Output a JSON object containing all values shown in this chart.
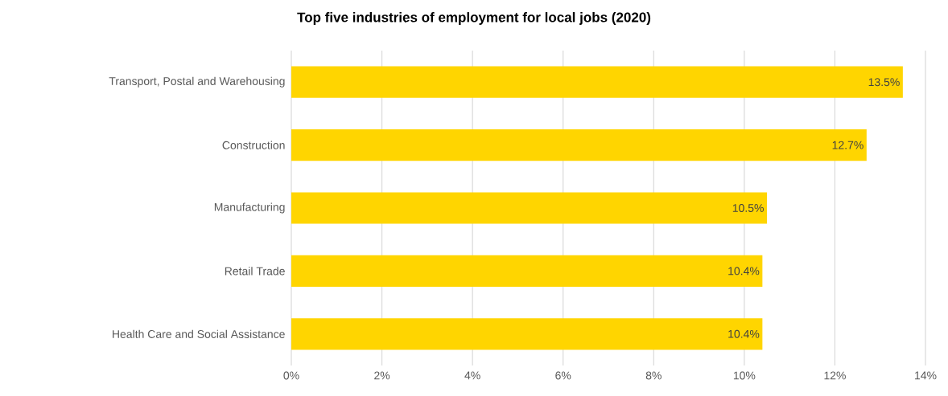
{
  "chart_data": {
    "type": "bar",
    "orientation": "horizontal",
    "title": "Top five industries of employment for local jobs (2020)",
    "categories": [
      "Transport, Postal and Warehousing",
      "Construction",
      "Manufacturing",
      "Retail Trade",
      "Health Care and Social Assistance"
    ],
    "values": [
      13.5,
      12.7,
      10.5,
      10.4,
      10.4
    ],
    "value_labels": [
      "13.5%",
      "12.7%",
      "10.5%",
      "10.4%",
      "10.4%"
    ],
    "color": "#ffd500",
    "xlim": [
      0,
      14
    ],
    "xticks": [
      {
        "value": 0,
        "label": "0%"
      },
      {
        "value": 2,
        "label": "2%"
      },
      {
        "value": 4,
        "label": "4%"
      },
      {
        "value": 6,
        "label": "6%"
      },
      {
        "value": 8,
        "label": "8%"
      },
      {
        "value": 10,
        "label": "10%"
      },
      {
        "value": 12,
        "label": "12%"
      },
      {
        "value": 14,
        "label": "14%"
      }
    ],
    "grid": "x"
  }
}
